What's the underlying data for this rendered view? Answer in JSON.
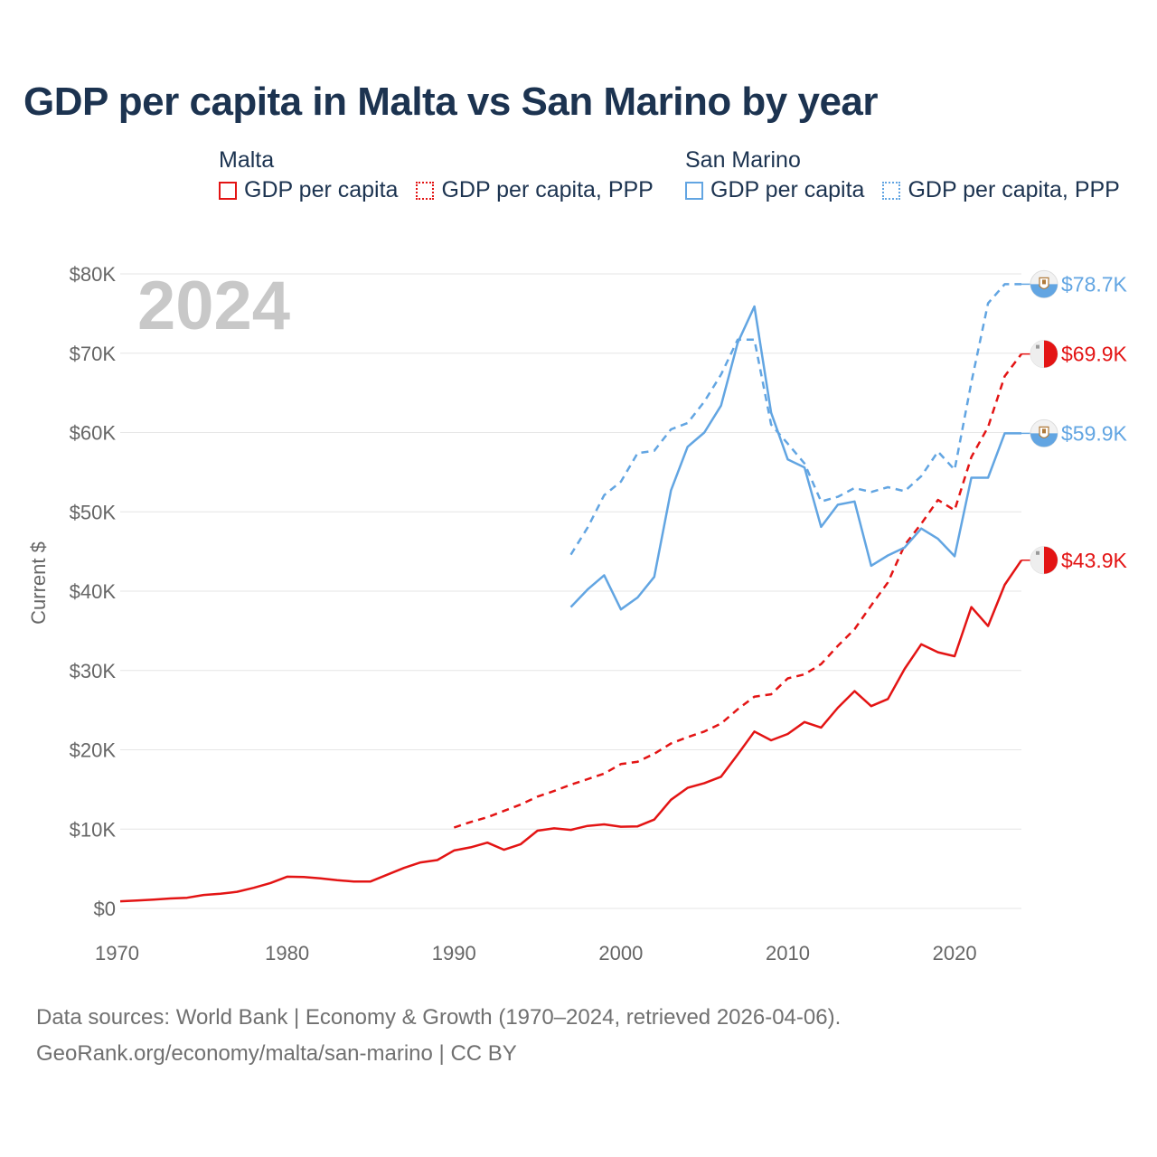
{
  "title": "GDP per capita in Malta vs San Marino by year",
  "legend": {
    "malta": {
      "label": "Malta",
      "nominal": "GDP per capita",
      "ppp": "GDP per capita, PPP"
    },
    "san_marino": {
      "label": "San Marino",
      "nominal": "GDP per capita",
      "ppp": "GDP per capita, PPP"
    }
  },
  "colors": {
    "malta": "#e31414",
    "san_marino": "#62a5e2",
    "grid": "#e6e6e6",
    "year": "#c8c8c8"
  },
  "footer": {
    "line1": "Data sources: World Bank | Economy & Growth (1970–2024, retrieved 2026-04-06).",
    "line2": "GeoRank.org/economy/malta/san-marino | CC BY"
  },
  "chart_data": {
    "type": "line",
    "title": "GDP per capita in Malta vs San Marino by year",
    "year_overlay": "2024",
    "xlabel": "",
    "ylabel": "Current $",
    "xlim": [
      1970,
      2024
    ],
    "ylim": [
      0,
      80000
    ],
    "x_ticks": [
      1970,
      1980,
      1990,
      2000,
      2010,
      2020
    ],
    "x_tick_labels": [
      "1970",
      "1980",
      "1990",
      "2000",
      "2010",
      "2020"
    ],
    "y_ticks": [
      0,
      10000,
      20000,
      30000,
      40000,
      50000,
      60000,
      70000,
      80000
    ],
    "y_tick_labels": [
      "$0",
      "$10K",
      "$20K",
      "$30K",
      "$40K",
      "$50K",
      "$60K",
      "$70K",
      "$80K"
    ],
    "series": [
      {
        "name": "Malta GDP per capita",
        "country": "malta",
        "style": "solid",
        "end_label": "$43.9K",
        "x": [
          1970,
          1971,
          1972,
          1973,
          1974,
          1975,
          1976,
          1977,
          1978,
          1979,
          1980,
          1981,
          1982,
          1983,
          1984,
          1985,
          1986,
          1987,
          1988,
          1989,
          1990,
          1991,
          1992,
          1993,
          1994,
          1995,
          1996,
          1997,
          1998,
          1999,
          2000,
          2001,
          2002,
          2003,
          2004,
          2005,
          2006,
          2007,
          2008,
          2009,
          2010,
          2011,
          2012,
          2013,
          2014,
          2015,
          2016,
          2017,
          2018,
          2019,
          2020,
          2021,
          2022,
          2023,
          2024
        ],
        "y": [
          900,
          1000,
          1100,
          1250,
          1350,
          1700,
          1850,
          2100,
          2600,
          3200,
          4000,
          3950,
          3800,
          3550,
          3400,
          3400,
          4250,
          5100,
          5800,
          6100,
          7300,
          7700,
          8300,
          7400,
          8100,
          9800,
          10100,
          9900,
          10400,
          10600,
          10300,
          10350,
          11200,
          13700,
          15200,
          15800,
          16600,
          19400,
          22300,
          21200,
          22000,
          23500,
          22800,
          25300,
          27400,
          25500,
          26400,
          30200,
          33300,
          32300,
          31800,
          38000,
          35600,
          40800,
          43900
        ]
      },
      {
        "name": "Malta GDP per capita, PPP",
        "country": "malta",
        "style": "dashed",
        "end_label": "$69.9K",
        "x": [
          1990,
          1991,
          1992,
          1993,
          1994,
          1995,
          1996,
          1997,
          1998,
          1999,
          2000,
          2001,
          2002,
          2003,
          2004,
          2005,
          2006,
          2007,
          2008,
          2009,
          2010,
          2011,
          2012,
          2013,
          2014,
          2015,
          2016,
          2017,
          2018,
          2019,
          2020,
          2021,
          2022,
          2023,
          2024
        ],
        "y": [
          10200,
          10900,
          11500,
          12300,
          13100,
          14100,
          14800,
          15600,
          16300,
          17000,
          18200,
          18500,
          19500,
          20800,
          21600,
          22300,
          23300,
          25100,
          26700,
          27000,
          29000,
          29500,
          30800,
          33100,
          35200,
          38200,
          41100,
          45800,
          48500,
          51500,
          50200,
          56900,
          60700,
          67100,
          69900
        ]
      },
      {
        "name": "San Marino GDP per capita",
        "country": "san_marino",
        "style": "solid",
        "end_label": "$59.9K",
        "x": [
          1997,
          1998,
          1999,
          2000,
          2001,
          2002,
          2003,
          2004,
          2005,
          2006,
          2007,
          2008,
          2009,
          2010,
          2011,
          2012,
          2013,
          2014,
          2015,
          2016,
          2017,
          2018,
          2019,
          2020,
          2021,
          2022,
          2023,
          2024
        ],
        "y": [
          38000,
          40200,
          42000,
          37700,
          39200,
          41800,
          52700,
          58200,
          60000,
          63400,
          71300,
          75900,
          62500,
          56600,
          55600,
          48100,
          50900,
          51300,
          43200,
          44500,
          45500,
          47900,
          46600,
          44400,
          54300,
          54300,
          59900,
          59900
        ]
      },
      {
        "name": "San Marino GDP per capita, PPP",
        "country": "san_marino",
        "style": "dashed",
        "end_label": "$78.7K",
        "x": [
          1997,
          1998,
          1999,
          2000,
          2001,
          2002,
          2003,
          2004,
          2005,
          2006,
          2007,
          2008,
          2009,
          2010,
          2011,
          2012,
          2013,
          2014,
          2015,
          2016,
          2017,
          2018,
          2019,
          2020,
          2021,
          2022,
          2023,
          2024
        ],
        "y": [
          44600,
          48000,
          52100,
          53800,
          57400,
          57700,
          60400,
          61200,
          63900,
          67300,
          71700,
          71700,
          61000,
          58600,
          56100,
          51300,
          51900,
          53000,
          52500,
          53100,
          52600,
          54500,
          57600,
          55300,
          66300,
          76300,
          78700,
          78700
        ]
      }
    ]
  }
}
